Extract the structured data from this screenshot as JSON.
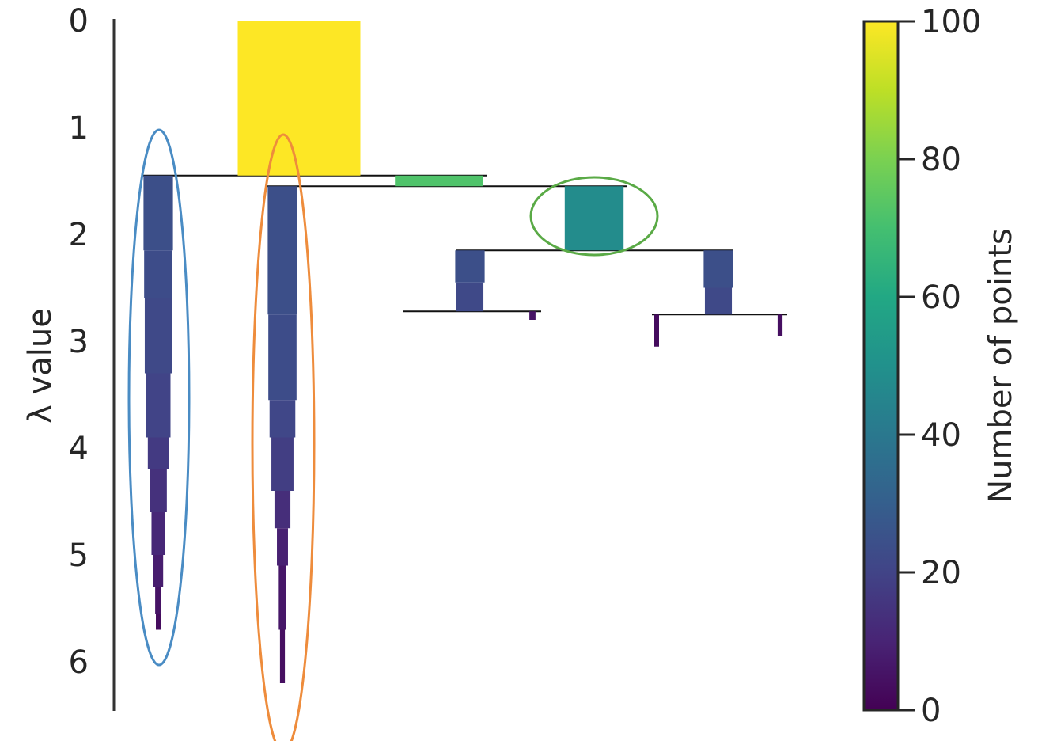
{
  "chart_data": {
    "type": "condensed-tree",
    "title": "",
    "xlabel": "",
    "ylabel": "λ value",
    "ylim": [
      0,
      6.5
    ],
    "y_inverted": true,
    "y_ticks": [
      0,
      1,
      2,
      3,
      4,
      5,
      6
    ],
    "colorbar": {
      "label": "Number of points",
      "colormap": "viridis",
      "range": [
        0,
        100
      ],
      "ticks": [
        0,
        20,
        40,
        60,
        80,
        100
      ]
    },
    "branches": [
      {
        "name": "root",
        "segments": [
          {
            "lambda_start": 0,
            "lambda_end": 1.45,
            "points": 100
          }
        ]
      },
      {
        "name": "blue-selected-cluster",
        "selected": true,
        "segments": [
          {
            "lambda_start": 1.45,
            "lambda_end": 2.15,
            "points": 24
          },
          {
            "lambda_start": 2.15,
            "lambda_end": 2.6,
            "points": 23
          },
          {
            "lambda_start": 2.6,
            "lambda_end": 3.3,
            "points": 22
          },
          {
            "lambda_start": 3.3,
            "lambda_end": 3.9,
            "points": 20
          },
          {
            "lambda_start": 3.9,
            "lambda_end": 4.2,
            "points": 17
          },
          {
            "lambda_start": 4.2,
            "lambda_end": 4.6,
            "points": 14
          },
          {
            "lambda_start": 4.6,
            "lambda_end": 5.0,
            "points": 11
          },
          {
            "lambda_start": 5.0,
            "lambda_end": 5.3,
            "points": 8
          },
          {
            "lambda_start": 5.3,
            "lambda_end": 5.55,
            "points": 5
          },
          {
            "lambda_start": 5.55,
            "lambda_end": 5.7,
            "points": 3
          }
        ]
      },
      {
        "name": "side-branch-small",
        "segments": [
          {
            "lambda_start": 1.45,
            "lambda_end": 1.55,
            "points": 72
          }
        ]
      },
      {
        "name": "orange-selected-cluster",
        "selected": true,
        "segments": [
          {
            "lambda_start": 1.55,
            "lambda_end": 2.75,
            "points": 24
          },
          {
            "lambda_start": 2.75,
            "lambda_end": 3.55,
            "points": 23
          },
          {
            "lambda_start": 3.55,
            "lambda_end": 3.9,
            "points": 21
          },
          {
            "lambda_start": 3.9,
            "lambda_end": 4.4,
            "points": 18
          },
          {
            "lambda_start": 4.4,
            "lambda_end": 4.75,
            "points": 13
          },
          {
            "lambda_start": 4.75,
            "lambda_end": 5.1,
            "points": 9
          },
          {
            "lambda_start": 5.1,
            "lambda_end": 5.7,
            "points": 6
          },
          {
            "lambda_start": 5.7,
            "lambda_end": 6.2,
            "points": 4
          }
        ]
      },
      {
        "name": "green-selected-cluster",
        "selected": true,
        "segments": [
          {
            "lambda_start": 1.55,
            "lambda_end": 2.15,
            "points": 48
          }
        ]
      },
      {
        "name": "sub-left",
        "segments": [
          {
            "lambda_start": 2.15,
            "lambda_end": 2.45,
            "points": 24
          },
          {
            "lambda_start": 2.45,
            "lambda_end": 2.72,
            "points": 22
          }
        ]
      },
      {
        "name": "sub-right",
        "segments": [
          {
            "lambda_start": 2.15,
            "lambda_end": 2.5,
            "points": 24
          },
          {
            "lambda_start": 2.5,
            "lambda_end": 2.75,
            "points": 22
          }
        ]
      },
      {
        "name": "leaf-a",
        "segments": [
          {
            "lambda_start": 2.72,
            "lambda_end": 2.8,
            "points": 5
          }
        ]
      },
      {
        "name": "leaf-b",
        "segments": [
          {
            "lambda_start": 2.75,
            "lambda_end": 3.05,
            "points": 3
          }
        ]
      },
      {
        "name": "leaf-c",
        "segments": [
          {
            "lambda_start": 2.75,
            "lambda_end": 2.95,
            "points": 4
          }
        ]
      }
    ],
    "highlights": [
      {
        "cluster": "blue-selected-cluster",
        "color": "#4a8cc4"
      },
      {
        "cluster": "orange-selected-cluster",
        "color": "#ee8c3c"
      },
      {
        "cluster": "green-selected-cluster",
        "color": "#5aaa46"
      }
    ]
  }
}
